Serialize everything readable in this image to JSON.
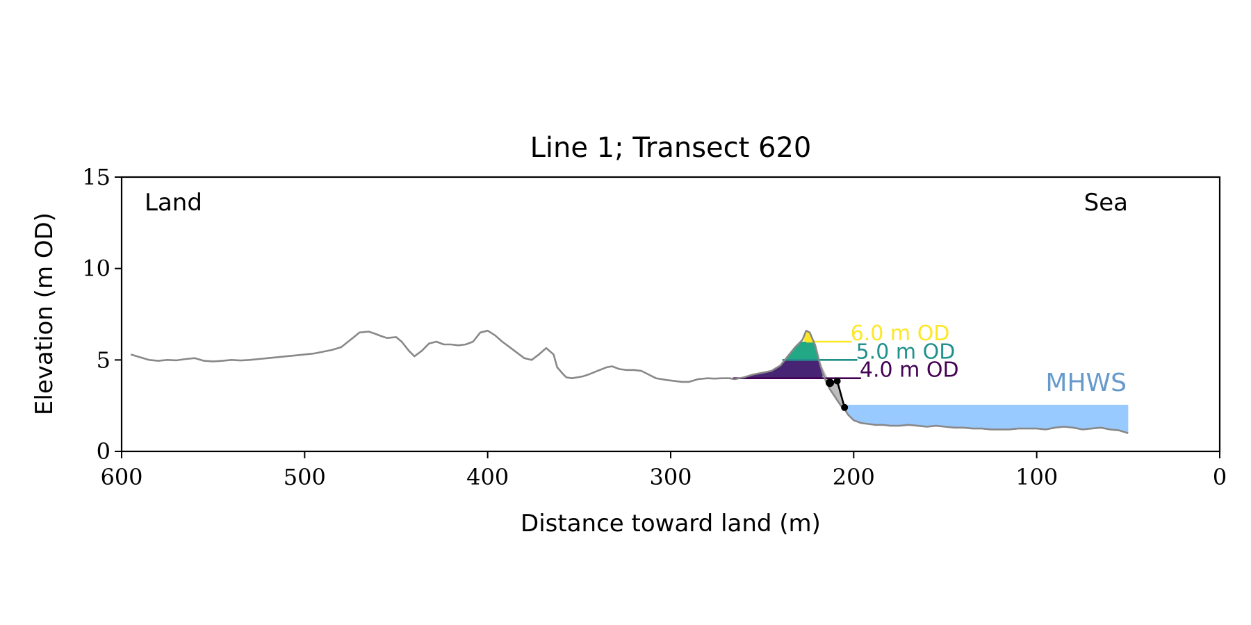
{
  "chart_data": {
    "type": "area",
    "title": "Line 1; Transect 620",
    "xlabel": "Distance toward land (m)",
    "ylabel": "Elevation (m OD)",
    "xlim": [
      600,
      0
    ],
    "ylim": [
      0,
      15
    ],
    "x_ticks": [
      "600",
      "500",
      "400",
      "300",
      "200",
      "100",
      "0"
    ],
    "y_ticks": [
      "0",
      "5",
      "10",
      "15"
    ],
    "grid": false,
    "corner_labels": {
      "left": "Land",
      "right": "Sea"
    },
    "profile": {
      "color": "#888888",
      "x": [
        595,
        590,
        585,
        580,
        575,
        570,
        565,
        560,
        555,
        550,
        545,
        540,
        535,
        530,
        525,
        520,
        515,
        510,
        505,
        500,
        495,
        490,
        485,
        480,
        475,
        470,
        465,
        462,
        458,
        455,
        450,
        447,
        443,
        440,
        436,
        432,
        428,
        424,
        420,
        416,
        412,
        408,
        404,
        400,
        396,
        392,
        388,
        384,
        380,
        376,
        372,
        368,
        364,
        362,
        359,
        357,
        354,
        351,
        348,
        345,
        340,
        335,
        332,
        328,
        324,
        320,
        316,
        312,
        308,
        305,
        302,
        298,
        294,
        290,
        285,
        280,
        276,
        272,
        268,
        265,
        260,
        255,
        250,
        245,
        240,
        236,
        232,
        228,
        226,
        224,
        221,
        219,
        217,
        215,
        213,
        211,
        209,
        207,
        205,
        203,
        200,
        196,
        192,
        188,
        184,
        180,
        175,
        170,
        165,
        160,
        155,
        150,
        145,
        140,
        135,
        130,
        125,
        120,
        115,
        110,
        105,
        100,
        95,
        90,
        85,
        80,
        75,
        70,
        65,
        60,
        55,
        50
      ],
      "y": [
        5.3,
        5.15,
        5.0,
        4.95,
        5.0,
        4.98,
        5.05,
        5.1,
        4.95,
        4.92,
        4.95,
        5.0,
        4.97,
        5.0,
        5.05,
        5.1,
        5.15,
        5.2,
        5.25,
        5.3,
        5.35,
        5.45,
        5.55,
        5.7,
        6.1,
        6.5,
        6.55,
        6.45,
        6.3,
        6.2,
        6.25,
        6.0,
        5.5,
        5.2,
        5.5,
        5.9,
        6.0,
        5.85,
        5.85,
        5.8,
        5.85,
        6.0,
        6.5,
        6.6,
        6.35,
        6.0,
        5.7,
        5.4,
        5.1,
        5.0,
        5.3,
        5.65,
        5.3,
        4.6,
        4.25,
        4.05,
        4.0,
        4.05,
        4.1,
        4.2,
        4.4,
        4.6,
        4.65,
        4.5,
        4.45,
        4.45,
        4.4,
        4.2,
        4.0,
        3.95,
        3.9,
        3.85,
        3.8,
        3.8,
        3.95,
        4.0,
        3.98,
        4.0,
        4.0,
        3.95,
        4.05,
        4.2,
        4.3,
        4.4,
        4.7,
        5.2,
        5.7,
        6.1,
        6.6,
        6.5,
        5.8,
        5.0,
        4.3,
        3.8,
        3.4,
        3.1,
        2.8,
        2.5,
        2.3,
        2.0,
        1.7,
        1.55,
        1.5,
        1.45,
        1.45,
        1.4,
        1.4,
        1.45,
        1.4,
        1.35,
        1.4,
        1.35,
        1.3,
        1.3,
        1.25,
        1.25,
        1.2,
        1.2,
        1.2,
        1.25,
        1.25,
        1.25,
        1.2,
        1.3,
        1.35,
        1.3,
        1.2,
        1.25,
        1.3,
        1.2,
        1.15,
        1.0
      ]
    },
    "contours": [
      {
        "label": "6.0 m OD",
        "level": 6.0,
        "color": "#fde725",
        "x_start": 226,
        "x_end": 201,
        "fill_from_x": 227
      },
      {
        "label": "5.0 m OD",
        "level": 5.0,
        "color": "#21918c",
        "x_start": 239,
        "x_end": 198,
        "fill_from_x": 240
      },
      {
        "label": "4.0 m OD",
        "level": 4.0,
        "color": "#440154",
        "x_start": 266,
        "x_end": 196,
        "fill_from_x": 266
      }
    ],
    "contour_fill_colors": {
      "4.0-5.0": "#482475",
      "5.0-6.0": "#22a884",
      "6.0-top": "#fde725"
    },
    "edge_markers": {
      "color": "#000000",
      "points": [
        {
          "x": 213,
          "y": 3.75
        },
        {
          "x": 209,
          "y": 3.85
        },
        {
          "x": 205,
          "y": 2.4
        }
      ]
    },
    "mhws": {
      "label": "MHWS",
      "level": 2.55,
      "x_from": 205,
      "x_to": 50,
      "fill_color": "#99caff",
      "label_color": "#6699cc"
    }
  }
}
